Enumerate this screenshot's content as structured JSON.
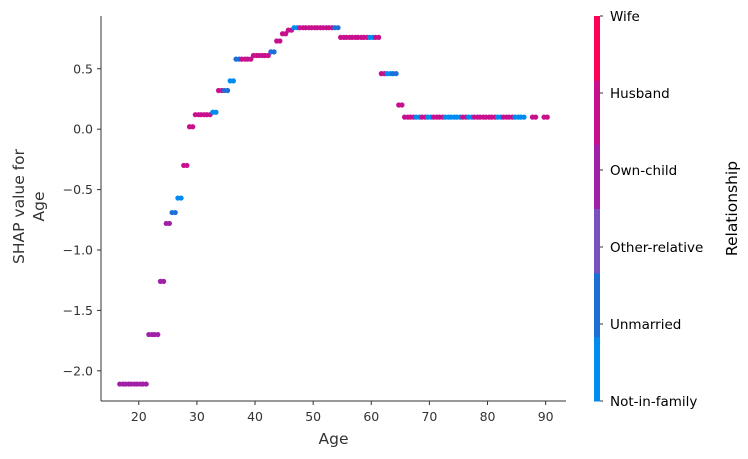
{
  "chart_data": {
    "type": "scatter",
    "xlabel": "Age",
    "ylabel": [
      "SHAP value for",
      "Age"
    ],
    "xlim": [
      13.5,
      93.5
    ],
    "ylim": [
      -2.25,
      0.97
    ],
    "xticks": [
      20,
      30,
      40,
      50,
      60,
      70,
      80,
      90
    ],
    "yticks": [
      0.5,
      0.0,
      -0.5,
      -1.0,
      -1.5,
      -2.0
    ],
    "ytick_labels": [
      "0.5",
      "0.0",
      "−0.5",
      "−1.0",
      "−1.5",
      "−2.0"
    ],
    "grid": false,
    "colorbar": {
      "title": "Relationship",
      "categories": [
        "Not-in-family",
        "Unmarried",
        "Other-relative",
        "Own-child",
        "Husband",
        "Wife"
      ],
      "colors": [
        "#008bf0",
        "#1d6fd8",
        "#7b4fc0",
        "#a020a8",
        "#c8108e",
        "#ff0058"
      ]
    },
    "points": [
      {
        "age": 17,
        "value": -2.11,
        "group": "Own-child"
      },
      {
        "age": 18,
        "value": -2.11,
        "group": "Own-child"
      },
      {
        "age": 19,
        "value": -2.11,
        "group": "Own-child"
      },
      {
        "age": 20,
        "value": -2.11,
        "group": "Own-child"
      },
      {
        "age": 21,
        "value": -2.11,
        "group": "Own-child"
      },
      {
        "age": 22,
        "value": -1.7,
        "group": "Own-child"
      },
      {
        "age": 23,
        "value": -1.7,
        "group": "Own-child"
      },
      {
        "age": 24,
        "value": -1.26,
        "group": "Own-child"
      },
      {
        "age": 25,
        "value": -0.78,
        "group": "Own-child"
      },
      {
        "age": 26,
        "value": -0.69,
        "group": "Unmarried"
      },
      {
        "age": 27,
        "value": -0.57,
        "group": "Not-in-family"
      },
      {
        "age": 28,
        "value": -0.3,
        "group": "Husband"
      },
      {
        "age": 29,
        "value": 0.02,
        "group": "Husband"
      },
      {
        "age": 30,
        "value": 0.12,
        "group": "Husband"
      },
      {
        "age": 31,
        "value": 0.12,
        "group": "Husband"
      },
      {
        "age": 32,
        "value": 0.12,
        "group": "Husband"
      },
      {
        "age": 33,
        "value": 0.14,
        "group": "Not-in-family"
      },
      {
        "age": 34,
        "value": 0.32,
        "group": "Husband"
      },
      {
        "age": 35,
        "value": 0.32,
        "group": "Unmarried"
      },
      {
        "age": 36,
        "value": 0.4,
        "group": "Not-in-family"
      },
      {
        "age": 37,
        "value": 0.58,
        "group": "Unmarried"
      },
      {
        "age": 38,
        "value": 0.58,
        "group": "Husband"
      },
      {
        "age": 39,
        "value": 0.58,
        "group": "Husband"
      },
      {
        "age": 40,
        "value": 0.61,
        "group": "Husband"
      },
      {
        "age": 41,
        "value": 0.61,
        "group": "Husband"
      },
      {
        "age": 42,
        "value": 0.61,
        "group": "Husband"
      },
      {
        "age": 43,
        "value": 0.64,
        "group": "Unmarried"
      },
      {
        "age": 44,
        "value": 0.73,
        "group": "Husband"
      },
      {
        "age": 45,
        "value": 0.79,
        "group": "Husband"
      },
      {
        "age": 46,
        "value": 0.82,
        "group": "Husband"
      },
      {
        "age": 47,
        "value": 0.84,
        "group": "Not-in-family"
      },
      {
        "age": 48,
        "value": 0.84,
        "group": "Husband"
      },
      {
        "age": 49,
        "value": 0.84,
        "group": "Husband"
      },
      {
        "age": 50,
        "value": 0.84,
        "group": "Husband"
      },
      {
        "age": 51,
        "value": 0.84,
        "group": "Husband"
      },
      {
        "age": 52,
        "value": 0.84,
        "group": "Husband"
      },
      {
        "age": 53,
        "value": 0.84,
        "group": "Husband"
      },
      {
        "age": 54,
        "value": 0.84,
        "group": "Unmarried"
      },
      {
        "age": 55,
        "value": 0.76,
        "group": "Husband"
      },
      {
        "age": 56,
        "value": 0.76,
        "group": "Husband"
      },
      {
        "age": 57,
        "value": 0.76,
        "group": "Husband"
      },
      {
        "age": 58,
        "value": 0.76,
        "group": "Husband"
      },
      {
        "age": 59,
        "value": 0.76,
        "group": "Husband"
      },
      {
        "age": 60,
        "value": 0.76,
        "group": "Not-in-family"
      },
      {
        "age": 61,
        "value": 0.76,
        "group": "Husband"
      },
      {
        "age": 62,
        "value": 0.46,
        "group": "Husband"
      },
      {
        "age": 63,
        "value": 0.46,
        "group": "Not-in-family"
      },
      {
        "age": 64,
        "value": 0.46,
        "group": "Unmarried"
      },
      {
        "age": 65,
        "value": 0.2,
        "group": "Husband"
      },
      {
        "age": 66,
        "value": 0.1,
        "group": "Husband"
      },
      {
        "age": 67,
        "value": 0.1,
        "group": "Husband"
      },
      {
        "age": 68,
        "value": 0.1,
        "group": "Not-in-family"
      },
      {
        "age": 69,
        "value": 0.1,
        "group": "Husband"
      },
      {
        "age": 70,
        "value": 0.1,
        "group": "Not-in-family"
      },
      {
        "age": 71,
        "value": 0.1,
        "group": "Husband"
      },
      {
        "age": 72,
        "value": 0.1,
        "group": "Husband"
      },
      {
        "age": 73,
        "value": 0.1,
        "group": "Not-in-family"
      },
      {
        "age": 74,
        "value": 0.1,
        "group": "Not-in-family"
      },
      {
        "age": 75,
        "value": 0.1,
        "group": "Not-in-family"
      },
      {
        "age": 76,
        "value": 0.1,
        "group": "Husband"
      },
      {
        "age": 77,
        "value": 0.1,
        "group": "Not-in-family"
      },
      {
        "age": 78,
        "value": 0.1,
        "group": "Husband"
      },
      {
        "age": 79,
        "value": 0.1,
        "group": "Husband"
      },
      {
        "age": 80,
        "value": 0.1,
        "group": "Husband"
      },
      {
        "age": 81,
        "value": 0.1,
        "group": "Husband"
      },
      {
        "age": 82,
        "value": 0.1,
        "group": "Not-in-family"
      },
      {
        "age": 83,
        "value": 0.1,
        "group": "Husband"
      },
      {
        "age": 84,
        "value": 0.1,
        "group": "Husband"
      },
      {
        "age": 85,
        "value": 0.1,
        "group": "Not-in-family"
      },
      {
        "age": 86,
        "value": 0.1,
        "group": "Not-in-family"
      },
      {
        "age": 88,
        "value": 0.1,
        "group": "Husband"
      },
      {
        "age": 90,
        "value": 0.1,
        "group": "Husband"
      }
    ]
  }
}
